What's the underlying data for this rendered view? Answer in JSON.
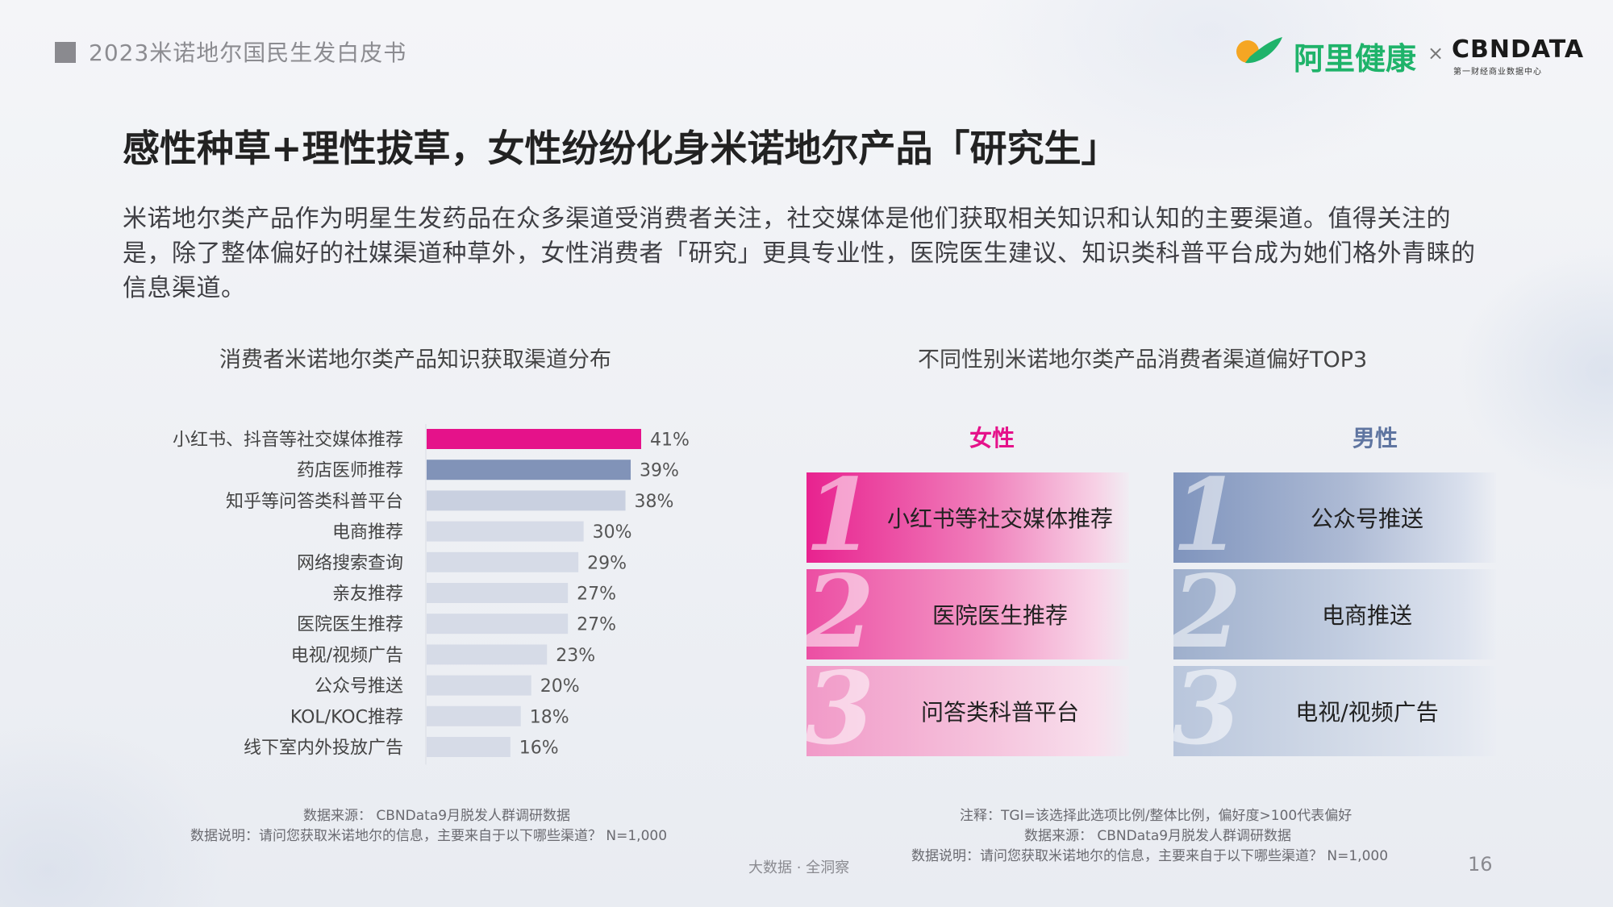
{
  "header": {
    "report_title": "2023米诺地尔国民生发白皮书",
    "brand_name": "阿里健康",
    "times_sign": "×",
    "partner_name": "CBNDATA",
    "partner_sub": "第一财经商业数据中心",
    "colors": {
      "brand_green": "#1fb36a",
      "brand_orange": "#f5a623"
    }
  },
  "headline": "感性种草+理性拔草，女性纷纷化身米诺地尔产品「研究生」",
  "intro": "米诺地尔类产品作为明星生发药品在众多渠道受消费者关注，社交媒体是他们获取相关知识和认知的主要渠道。值得关注的是，除了整体偏好的社媒渠道种草外，女性消费者「研究」更具专业性，医院医生建议、知识类科普平台成为她们格外青睐的信息渠道。",
  "chart_data": [
    {
      "type": "bar",
      "orientation": "horizontal",
      "title": "消费者米诺地尔类产品知识获取渠道分布",
      "categories": [
        "小红书、抖音等社交媒体推荐",
        "药店医师推荐",
        "知乎等问答类科普平台",
        "电商推荐",
        "网络搜索查询",
        "亲友推荐",
        "医院医生推荐",
        "电视/视频广告",
        "公众号推送",
        "KOL/KOC推荐",
        "线下室内外投放广告"
      ],
      "values": [
        41,
        39,
        38,
        30,
        29,
        27,
        27,
        23,
        20,
        18,
        16
      ],
      "value_labels": [
        "41%",
        "39%",
        "38%",
        "30%",
        "29%",
        "27%",
        "27%",
        "23%",
        "20%",
        "18%",
        "16%"
      ],
      "unit": "%",
      "xlim": [
        0,
        41
      ],
      "bar_colors": [
        "#e5128a",
        "#8193b8",
        "#c9d0e0",
        "#d6dbe7",
        "#d6dbe7",
        "#d6dbe7",
        "#d6dbe7",
        "#d6dbe7",
        "#d6dbe7",
        "#d6dbe7",
        "#d6dbe7"
      ],
      "xlabel": "",
      "ylabel": "",
      "grid": false
    },
    {
      "type": "table",
      "title": "不同性别米诺地尔类产品消费者渠道偏好TOP3",
      "columns": [
        "女性",
        "男性"
      ],
      "ranks": [
        "1",
        "2",
        "3"
      ],
      "rows": [
        [
          "小红书等社交媒体推荐",
          "公众号推送"
        ],
        [
          "医院医生推荐",
          "电商推送"
        ],
        [
          "问答类科普平台",
          "电视/视频广告"
        ]
      ],
      "colors": {
        "female": "#e5128a",
        "male": "#5f75a0"
      }
    }
  ],
  "notes": {
    "left": [
      "数据来源： CBNData9月脱发人群调研数据",
      "数据说明：请问您获取米诺地尔的信息，主要来自于以下哪些渠道？ N=1,000"
    ],
    "right": [
      "注释：TGI=该选择此选项比例/整体比例，偏好度>100代表偏好",
      "数据来源： CBNData9月脱发人群调研数据",
      "数据说明：请问您获取米诺地尔的信息，主要来自于以下哪些渠道？ N=1,000"
    ]
  },
  "footer": {
    "brand": "大数据 · 全洞察",
    "page_number": "16"
  }
}
